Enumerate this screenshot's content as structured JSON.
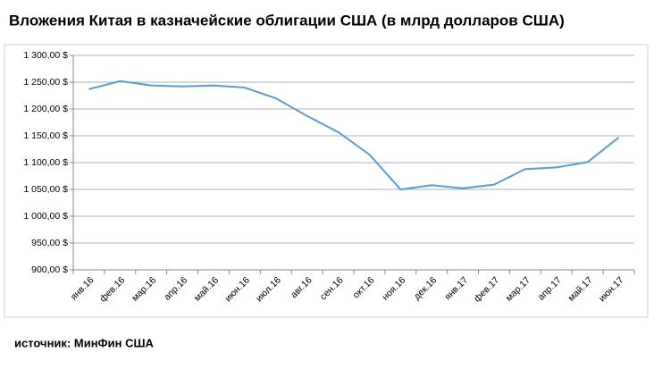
{
  "chart_data": {
    "type": "line",
    "title": "Вложения Китая в казначейские облигации США (в млрд долларов США)",
    "source": "источник: МинФин США",
    "categories": [
      "янв.16",
      "фев.16",
      "мар.16",
      "апр.16",
      "май.16",
      "июн.16",
      "июл.16",
      "авг.16",
      "сен.16",
      "окт.16",
      "ноя.16",
      "дек.16",
      "янв.17",
      "фев.17",
      "мар.17",
      "апр.17",
      "май.17",
      "июн.17"
    ],
    "series": [
      {
        "name": "Вложения Китая",
        "color": "#5b9bd0",
        "values": [
          1237,
          1252,
          1244,
          1242,
          1244,
          1240,
          1220,
          1187,
          1157,
          1115,
          1050,
          1058,
          1052,
          1059,
          1088,
          1091,
          1101,
          1147
        ]
      }
    ],
    "ylim": [
      900,
      1300
    ],
    "yticks": [
      {
        "value": 900,
        "label": "900,00 $"
      },
      {
        "value": 950,
        "label": "950,00 $"
      },
      {
        "value": 1000,
        "label": "1 000,00 $"
      },
      {
        "value": 1050,
        "label": "1 050,00 $"
      },
      {
        "value": 1100,
        "label": "1 100,00 $"
      },
      {
        "value": 1150,
        "label": "1 150,00 $"
      },
      {
        "value": 1200,
        "label": "1 200,00 $"
      },
      {
        "value": 1250,
        "label": "1 250,00 $"
      },
      {
        "value": 1300,
        "label": "1 300,00 $"
      }
    ],
    "grid": true
  }
}
